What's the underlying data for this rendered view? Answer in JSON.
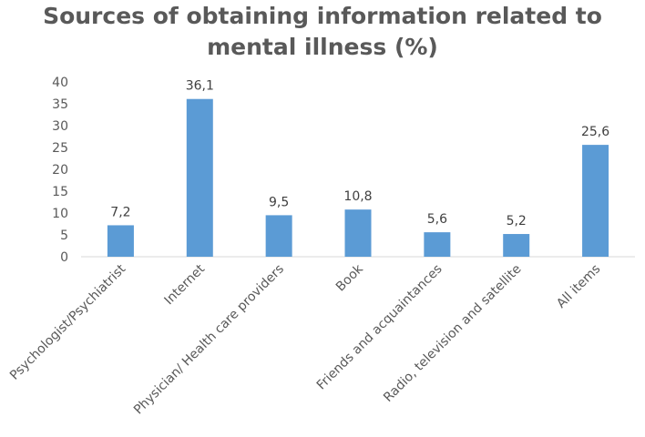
{
  "chart_data": {
    "type": "bar",
    "title_line1": "Sources of obtaining information related to",
    "title_line2": "mental illness (%)",
    "xlabel": "",
    "ylabel": "",
    "ylim": [
      0,
      40
    ],
    "yticks": [
      0,
      5,
      10,
      15,
      20,
      25,
      30,
      35,
      40
    ],
    "grid": false,
    "legend": "none",
    "bar_color": "#5B9BD5",
    "categories": [
      "Psychologist/Psychiatrist",
      "Internet",
      "Physician/ Health care providers",
      "Book",
      "Friends and acquaintances",
      "Radio, television and satellite",
      "All items"
    ],
    "values": [
      7.2,
      36.1,
      9.5,
      10.8,
      5.6,
      5.2,
      25.6
    ],
    "data_labels": [
      "7,2",
      "36,1",
      "9,5",
      "10,8",
      "5,6",
      "5,2",
      "25,6"
    ]
  }
}
